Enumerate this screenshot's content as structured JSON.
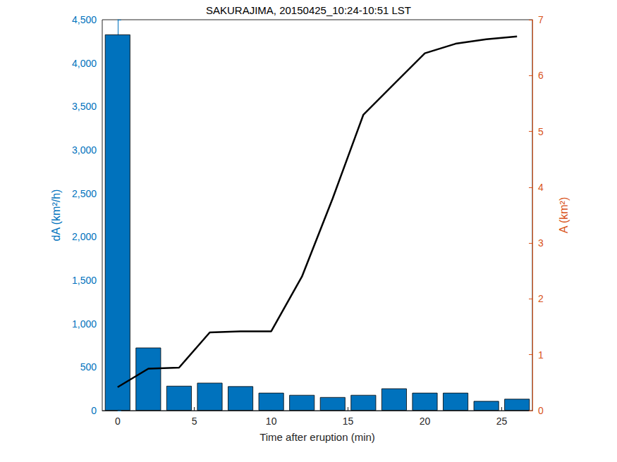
{
  "chart_data": {
    "type": "bar",
    "title": "SAKURAJIMA, 20150425_10:24-10:51 LST",
    "x_label": "Time after eruption (min)",
    "y_label": "dA (km²/h)",
    "y2_label": "A (km²)",
    "x": [
      0,
      2,
      4,
      6,
      8,
      10,
      12,
      14,
      16,
      18,
      20,
      22,
      24,
      26
    ],
    "xlim": [
      -1,
      27
    ],
    "xticks": [
      0,
      5,
      10,
      15,
      20,
      25
    ],
    "ylim": [
      0,
      4500
    ],
    "yticks": [
      0,
      500,
      1000,
      1500,
      2000,
      2500,
      3000,
      3500,
      4000,
      4500
    ],
    "y2lim": [
      0,
      7
    ],
    "y2ticks": [
      0,
      1,
      2,
      3,
      4,
      5,
      6,
      7
    ],
    "grid": false,
    "series": [
      {
        "type": "bar",
        "axis": "y",
        "color": "#0072BD",
        "values": [
          4330,
          725,
          285,
          320,
          280,
          205,
          180,
          155,
          180,
          255,
          205,
          205,
          110,
          135
        ]
      },
      {
        "type": "line",
        "axis": "y2",
        "color": "#000000",
        "values": [
          0.42,
          0.75,
          0.77,
          1.4,
          1.42,
          1.42,
          2.4,
          3.8,
          5.3,
          5.85,
          6.4,
          6.57,
          6.65,
          6.7
        ]
      }
    ]
  }
}
